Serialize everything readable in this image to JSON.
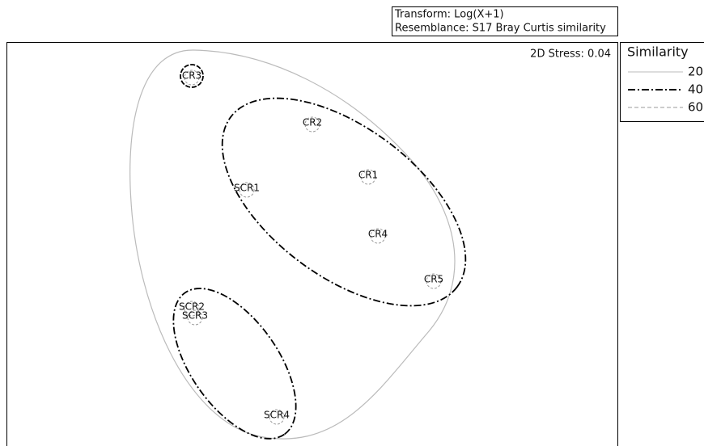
{
  "header": {
    "transform": "Transform: Log(X+1)",
    "resemblance": "Resemblance: S17 Bray Curtis similarity"
  },
  "stress": "2D Stress: 0.04",
  "legend": {
    "title": "Similarity",
    "entries": [
      "20",
      "40",
      "60"
    ]
  },
  "points": [
    {
      "label": "CR3"
    },
    {
      "label": "CR2"
    },
    {
      "label": "CR1"
    },
    {
      "label": "SCR1"
    },
    {
      "label": "CR4"
    },
    {
      "label": "CR5"
    },
    {
      "label": "SCR2"
    },
    {
      "label": "SCR3"
    },
    {
      "label": "SCR4"
    }
  ]
}
